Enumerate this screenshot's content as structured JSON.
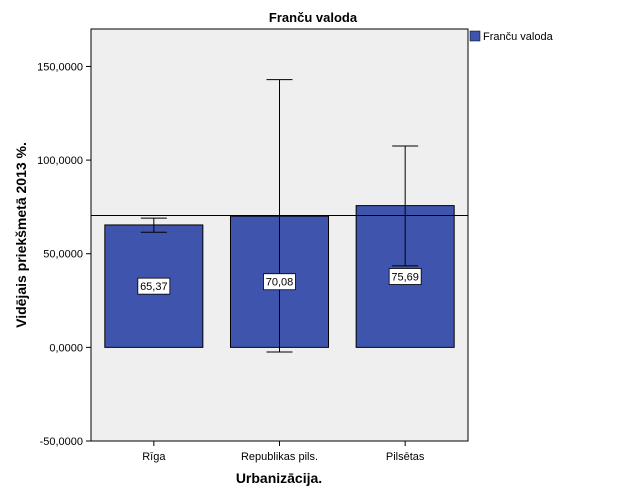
{
  "chart_data": {
    "type": "bar",
    "title": "Franču valoda",
    "xlabel": "Urbanizācija.",
    "ylabel": "Vidējais priekšmetā 2013 %.",
    "categories": [
      "Rīga",
      "Republikas pils.",
      "Pilsētas"
    ],
    "series": [
      {
        "name": "Franču valoda",
        "values": [
          65.37,
          70.08,
          75.69
        ],
        "value_labels": [
          "65,37",
          "70,08",
          "75,69"
        ],
        "error_low": [
          61.5,
          -2.5,
          43.5
        ],
        "error_high": [
          69.0,
          143.0,
          107.5
        ],
        "color": "#3f55ad"
      }
    ],
    "ylim": [
      -50,
      170
    ],
    "yticks": [
      -50,
      0,
      50,
      100,
      150
    ],
    "ytick_labels": [
      "-50,0000",
      "0,0000",
      "50,0000",
      "100,0000",
      "150,0000"
    ],
    "reference_line": 70.4,
    "legend": "top-right",
    "grid": false,
    "plot_background": "#efefef"
  }
}
